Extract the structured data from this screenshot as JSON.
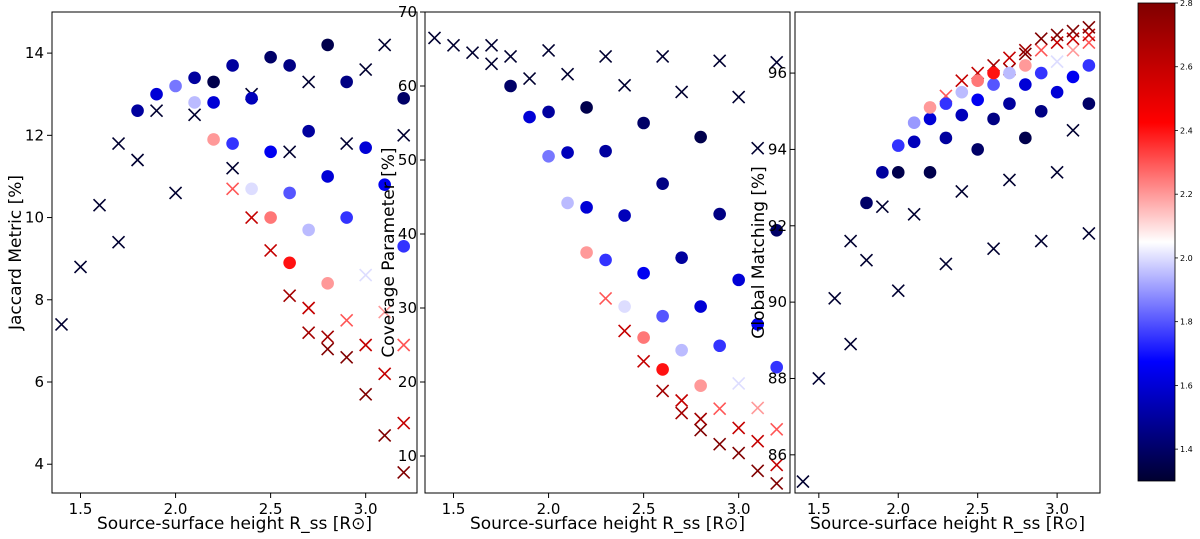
{
  "chart_data": [
    {
      "type": "scatter",
      "xlabel": "Source-surface height R_ss [R⊙]",
      "ylabel": "Jaccard Metric [%]",
      "xlim": [
        1.35,
        3.27
      ],
      "ylim": [
        3.3,
        15.0
      ],
      "xticks": [
        "1.5",
        "2.0",
        "2.5",
        "3.0"
      ],
      "yticks": [
        "4",
        "6",
        "8",
        "10",
        "12",
        "14"
      ],
      "series": [
        {
          "name": "crosses",
          "marker": "x",
          "x": [
            1.4,
            1.5,
            1.6,
            1.7,
            1.7,
            1.8,
            1.9,
            2.0,
            2.1,
            2.3,
            2.3,
            2.4,
            2.4,
            2.5,
            2.6,
            2.6,
            2.7,
            2.7,
            2.7,
            2.8,
            2.8,
            2.9,
            2.9,
            2.9,
            3.0,
            3.0,
            3.0,
            3.0,
            3.1,
            3.1,
            3.1,
            3.1,
            3.2,
            3.2,
            3.2,
            3.2
          ],
          "y": [
            7.4,
            8.8,
            10.3,
            9.4,
            11.8,
            11.4,
            12.6,
            10.6,
            12.5,
            11.2,
            10.7,
            13.0,
            10.0,
            9.2,
            11.6,
            8.1,
            13.3,
            7.8,
            7.2,
            7.1,
            6.8,
            11.8,
            7.5,
            6.6,
            13.6,
            8.6,
            6.9,
            5.7,
            14.2,
            7.7,
            6.2,
            4.7,
            12.0,
            6.9,
            5.0,
            3.8
          ],
          "c": [
            1.3,
            1.3,
            1.3,
            1.3,
            1.3,
            1.3,
            1.3,
            1.3,
            1.3,
            1.3,
            2.3,
            1.3,
            2.6,
            2.6,
            1.3,
            2.7,
            1.3,
            2.6,
            2.7,
            2.7,
            2.8,
            1.3,
            2.3,
            2.8,
            1.3,
            2.0,
            2.6,
            2.8,
            1.3,
            2.2,
            2.6,
            2.8,
            1.3,
            2.3,
            2.6,
            2.8
          ]
        },
        {
          "name": "circles",
          "marker": "o",
          "x": [
            1.8,
            1.9,
            2.0,
            2.1,
            2.1,
            2.2,
            2.2,
            2.2,
            2.3,
            2.3,
            2.4,
            2.4,
            2.5,
            2.5,
            2.5,
            2.6,
            2.6,
            2.6,
            2.7,
            2.7,
            2.8,
            2.8,
            2.8,
            2.9,
            2.9,
            3.0,
            3.1,
            3.2,
            3.2
          ],
          "y": [
            12.6,
            13.0,
            13.2,
            13.4,
            12.8,
            13.3,
            12.8,
            11.9,
            13.7,
            11.8,
            10.7,
            12.9,
            13.9,
            11.6,
            10.0,
            13.7,
            10.6,
            8.9,
            12.1,
            9.7,
            14.2,
            11.0,
            8.4,
            13.3,
            10.0,
            11.7,
            10.8,
            12.9,
            9.3
          ],
          "c": [
            1.5,
            1.6,
            1.85,
            1.5,
            1.95,
            1.35,
            1.6,
            2.2,
            1.5,
            1.75,
            2.0,
            1.55,
            1.4,
            1.65,
            2.25,
            1.45,
            1.8,
            2.4,
            1.5,
            1.95,
            1.35,
            1.6,
            2.2,
            1.45,
            1.75,
            1.6,
            1.65,
            1.4,
            1.75
          ]
        }
      ]
    },
    {
      "type": "scatter",
      "xlabel": "Source-surface height R_ss [R⊙]",
      "ylabel": "Coverage Parameter [%]",
      "xlim": [
        1.35,
        3.27
      ],
      "ylim": [
        5.0,
        70.0
      ],
      "xticks": [
        "1.5",
        "2.0",
        "2.5",
        "3.0"
      ],
      "yticks": [
        "10",
        "20",
        "30",
        "40",
        "50",
        "60",
        "70"
      ],
      "series": [
        {
          "name": "crosses",
          "marker": "x",
          "x": [
            1.4,
            1.5,
            1.6,
            1.7,
            1.7,
            1.8,
            1.9,
            2.0,
            2.1,
            2.3,
            2.3,
            2.4,
            2.4,
            2.5,
            2.6,
            2.6,
            2.7,
            2.7,
            2.7,
            2.8,
            2.8,
            2.9,
            2.9,
            2.9,
            3.0,
            3.0,
            3.0,
            3.0,
            3.1,
            3.1,
            3.1,
            3.1,
            3.2,
            3.2,
            3.2,
            3.2
          ],
          "y": [
            66.5,
            65.5,
            64.5,
            65.5,
            63.0,
            64.0,
            61.0,
            64.8,
            61.6,
            64.0,
            31.3,
            60.1,
            26.9,
            22.8,
            64.0,
            18.8,
            59.2,
            17.5,
            15.8,
            15.0,
            13.5,
            63.4,
            16.4,
            11.6,
            58.5,
            19.8,
            13.8,
            10.4,
            51.6,
            16.5,
            12.0,
            8.0,
            63.2,
            13.6,
            8.8,
            6.3
          ],
          "c": [
            1.3,
            1.3,
            1.3,
            1.3,
            1.3,
            1.3,
            1.3,
            1.3,
            1.3,
            1.3,
            2.3,
            1.3,
            2.6,
            2.6,
            1.3,
            2.7,
            1.3,
            2.6,
            2.7,
            2.7,
            2.8,
            1.3,
            2.3,
            2.8,
            1.3,
            2.0,
            2.6,
            2.8,
            1.3,
            2.2,
            2.6,
            2.8,
            1.3,
            2.3,
            2.6,
            2.8
          ]
        },
        {
          "name": "circles",
          "marker": "o",
          "x": [
            1.8,
            1.9,
            2.0,
            2.0,
            2.1,
            2.1,
            2.2,
            2.2,
            2.2,
            2.3,
            2.3,
            2.4,
            2.4,
            2.5,
            2.5,
            2.5,
            2.6,
            2.6,
            2.6,
            2.7,
            2.7,
            2.8,
            2.8,
            2.8,
            2.9,
            2.9,
            3.0,
            3.1,
            3.2,
            3.2
          ],
          "y": [
            60.0,
            55.8,
            56.5,
            50.5,
            51.0,
            44.2,
            57.1,
            43.6,
            37.5,
            51.2,
            36.5,
            42.5,
            30.2,
            55.0,
            34.7,
            26.0,
            46.8,
            28.9,
            21.7,
            36.8,
            24.3,
            53.1,
            30.2,
            19.5,
            42.7,
            24.9,
            33.8,
            27.8,
            40.5,
            22.0
          ],
          "c": [
            1.4,
            1.6,
            1.5,
            1.85,
            1.55,
            1.95,
            1.35,
            1.6,
            2.2,
            1.5,
            1.75,
            1.55,
            2.0,
            1.4,
            1.65,
            2.25,
            1.45,
            1.8,
            2.4,
            1.5,
            1.95,
            1.35,
            1.6,
            2.2,
            1.45,
            1.75,
            1.6,
            1.65,
            1.4,
            1.75
          ]
        }
      ]
    },
    {
      "type": "scatter",
      "xlabel": "Source-surface height R_ss [R⊙]",
      "ylabel": "Global Matching [%]",
      "xlim": [
        1.35,
        3.27
      ],
      "ylim": [
        85.0,
        97.6
      ],
      "xticks": [
        "1.5",
        "2.0",
        "2.5",
        "3.0"
      ],
      "yticks": [
        "86",
        "88",
        "90",
        "92",
        "94",
        "96"
      ],
      "series": [
        {
          "name": "crosses",
          "marker": "x",
          "x": [
            1.4,
            1.5,
            1.6,
            1.7,
            1.7,
            1.8,
            1.9,
            2.0,
            2.1,
            2.3,
            2.3,
            2.4,
            2.4,
            2.5,
            2.6,
            2.6,
            2.7,
            2.7,
            2.7,
            2.8,
            2.8,
            2.9,
            2.9,
            2.9,
            3.0,
            3.0,
            3.0,
            3.0,
            3.1,
            3.1,
            3.1,
            3.1,
            3.2,
            3.2,
            3.2,
            3.2
          ],
          "y": [
            85.3,
            88.0,
            90.1,
            88.9,
            91.6,
            91.1,
            92.5,
            90.3,
            92.3,
            91.0,
            95.4,
            92.9,
            95.8,
            96.0,
            91.4,
            96.2,
            93.2,
            96.4,
            96.1,
            96.6,
            96.5,
            91.6,
            96.6,
            96.9,
            93.4,
            96.3,
            96.8,
            97.0,
            94.5,
            96.6,
            96.9,
            97.1,
            91.8,
            96.8,
            97.0,
            97.2
          ],
          "c": [
            1.3,
            1.3,
            1.3,
            1.3,
            1.3,
            1.3,
            1.3,
            1.3,
            1.3,
            1.3,
            2.3,
            1.3,
            2.6,
            2.6,
            1.3,
            2.7,
            1.3,
            2.6,
            2.7,
            2.7,
            2.8,
            1.3,
            2.3,
            2.8,
            1.3,
            2.0,
            2.6,
            2.8,
            1.3,
            2.2,
            2.6,
            2.8,
            1.3,
            2.3,
            2.6,
            2.8
          ]
        },
        {
          "name": "circles",
          "marker": "o",
          "x": [
            1.8,
            1.9,
            2.0,
            2.0,
            2.1,
            2.1,
            2.2,
            2.2,
            2.2,
            2.3,
            2.3,
            2.4,
            2.4,
            2.5,
            2.5,
            2.5,
            2.6,
            2.6,
            2.6,
            2.7,
            2.7,
            2.8,
            2.8,
            2.8,
            2.9,
            2.9,
            3.0,
            3.1,
            3.2,
            3.2
          ],
          "y": [
            92.6,
            93.4,
            93.4,
            94.1,
            94.2,
            94.7,
            93.4,
            94.8,
            95.1,
            94.3,
            95.2,
            94.9,
            95.5,
            94.0,
            95.3,
            95.8,
            94.8,
            95.7,
            96.0,
            95.2,
            96.0,
            94.3,
            95.7,
            96.2,
            95.0,
            96.0,
            95.5,
            95.9,
            95.2,
            96.2
          ],
          "c": [
            1.4,
            1.5,
            1.35,
            1.75,
            1.55,
            1.9,
            1.35,
            1.6,
            2.2,
            1.5,
            1.75,
            1.55,
            1.95,
            1.4,
            1.65,
            2.25,
            1.45,
            1.8,
            2.4,
            1.5,
            1.95,
            1.35,
            1.6,
            2.2,
            1.45,
            1.75,
            1.6,
            1.65,
            1.4,
            1.75
          ]
        }
      ]
    }
  ],
  "colorbar": {
    "cmap": "seismic",
    "vmin": 1.3,
    "vmax": 2.8,
    "ticks": [
      "1.4",
      "1.6",
      "1.8",
      "2.0",
      "2.2",
      "2.4",
      "2.6",
      "2.8"
    ]
  }
}
